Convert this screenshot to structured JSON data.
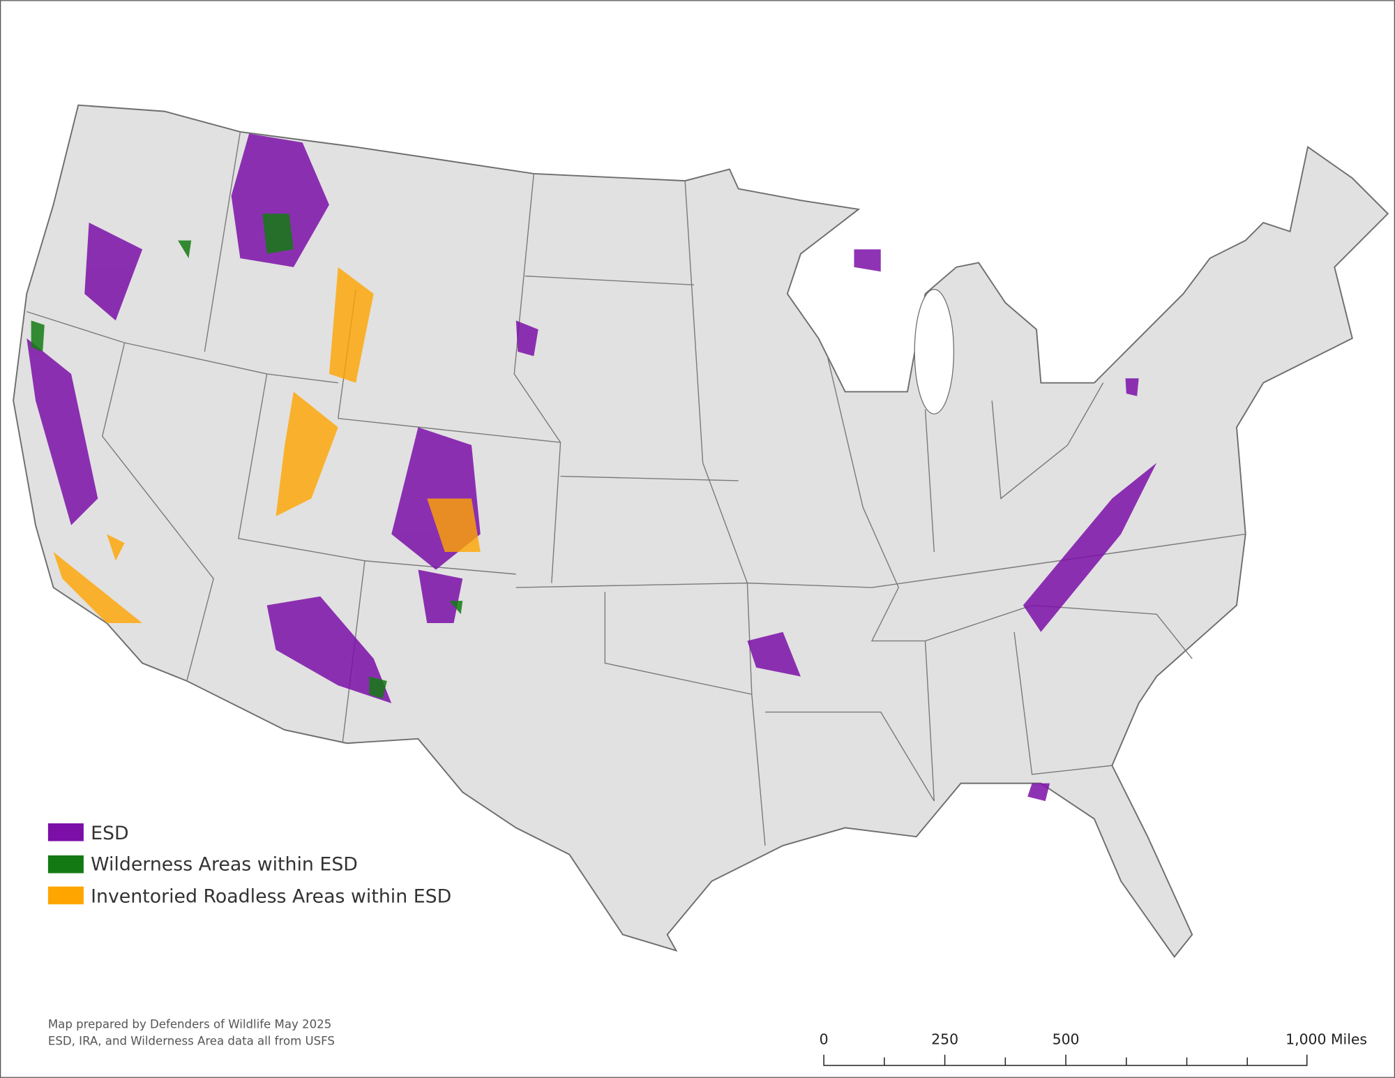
{
  "legend": {
    "items": [
      {
        "label": "ESD",
        "color": "#7b0fa8"
      },
      {
        "label": "Wilderness Areas within ESD",
        "color": "#137a13"
      },
      {
        "label": "Inventoried Roadless Areas within ESD",
        "color": "#ffa500"
      }
    ]
  },
  "credits": [
    "Map prepared by Defenders of Wildlife May 2025",
    "ESD, IRA, and Wilderness Area data all from USFS"
  ],
  "scale_bar": {
    "labels": [
      "0",
      "250",
      "500",
      "1,000 Miles"
    ]
  }
}
